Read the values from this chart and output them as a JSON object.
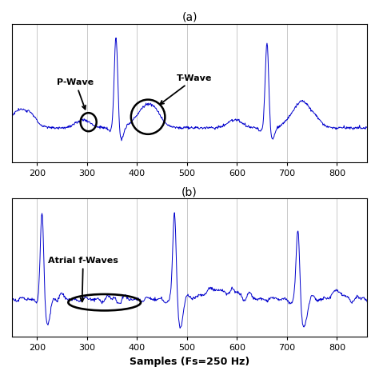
{
  "title_a": "(a)",
  "title_b": "(b)",
  "xlabel": "Samples (Fs=250 Hz)",
  "xlim": [
    150,
    860
  ],
  "ylim_a": [
    -0.6,
    1.8
  ],
  "ylim_b": [
    -0.6,
    1.6
  ],
  "xticks": [
    200,
    300,
    400,
    500,
    600,
    700,
    800
  ],
  "line_color": "#0000cc",
  "line_width": 0.7,
  "background_color": "#ffffff",
  "grid_color": "#c0c0c0",
  "annotation_fontsize": 8,
  "figsize": [
    4.74,
    4.74
  ],
  "dpi": 100
}
